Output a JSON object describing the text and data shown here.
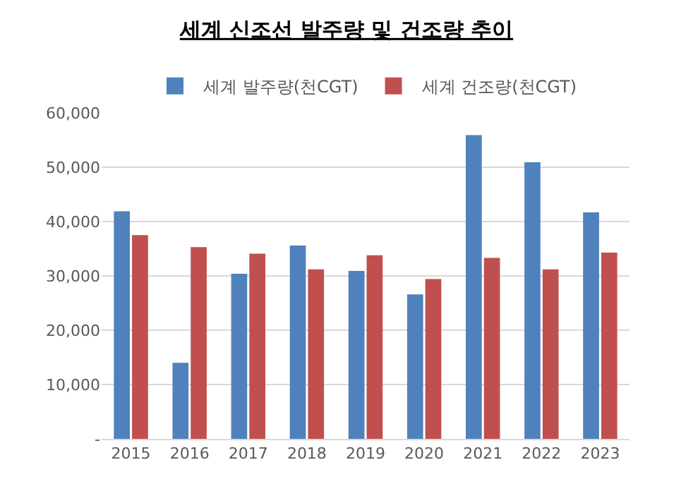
{
  "chart_data": {
    "type": "bar",
    "title": "세계 신조선 발주량 및 건조량 추이",
    "categories": [
      "2015",
      "2016",
      "2017",
      "2018",
      "2019",
      "2020",
      "2021",
      "2022",
      "2023"
    ],
    "series": [
      {
        "name": "세계 발주량(천CGT)",
        "color": "#4f81bd",
        "values": [
          41900,
          14000,
          30400,
          35600,
          30900,
          26600,
          55900,
          50900,
          41700
        ]
      },
      {
        "name": "세계 건조량(천CGT)",
        "color": "#c0504d",
        "values": [
          37500,
          35300,
          34100,
          31200,
          33800,
          29400,
          33300,
          31200,
          34300
        ]
      }
    ],
    "ylim": [
      0,
      60000
    ],
    "yticks": [
      {
        "value": 0,
        "label": "-"
      },
      {
        "value": 10000,
        "label": "10,000"
      },
      {
        "value": 20000,
        "label": "20,000"
      },
      {
        "value": 30000,
        "label": "30,000"
      },
      {
        "value": 40000,
        "label": "40,000"
      },
      {
        "value": 50000,
        "label": "50,000"
      },
      {
        "value": 60000,
        "label": "60,000"
      }
    ],
    "grid": "y",
    "legend": "top"
  }
}
